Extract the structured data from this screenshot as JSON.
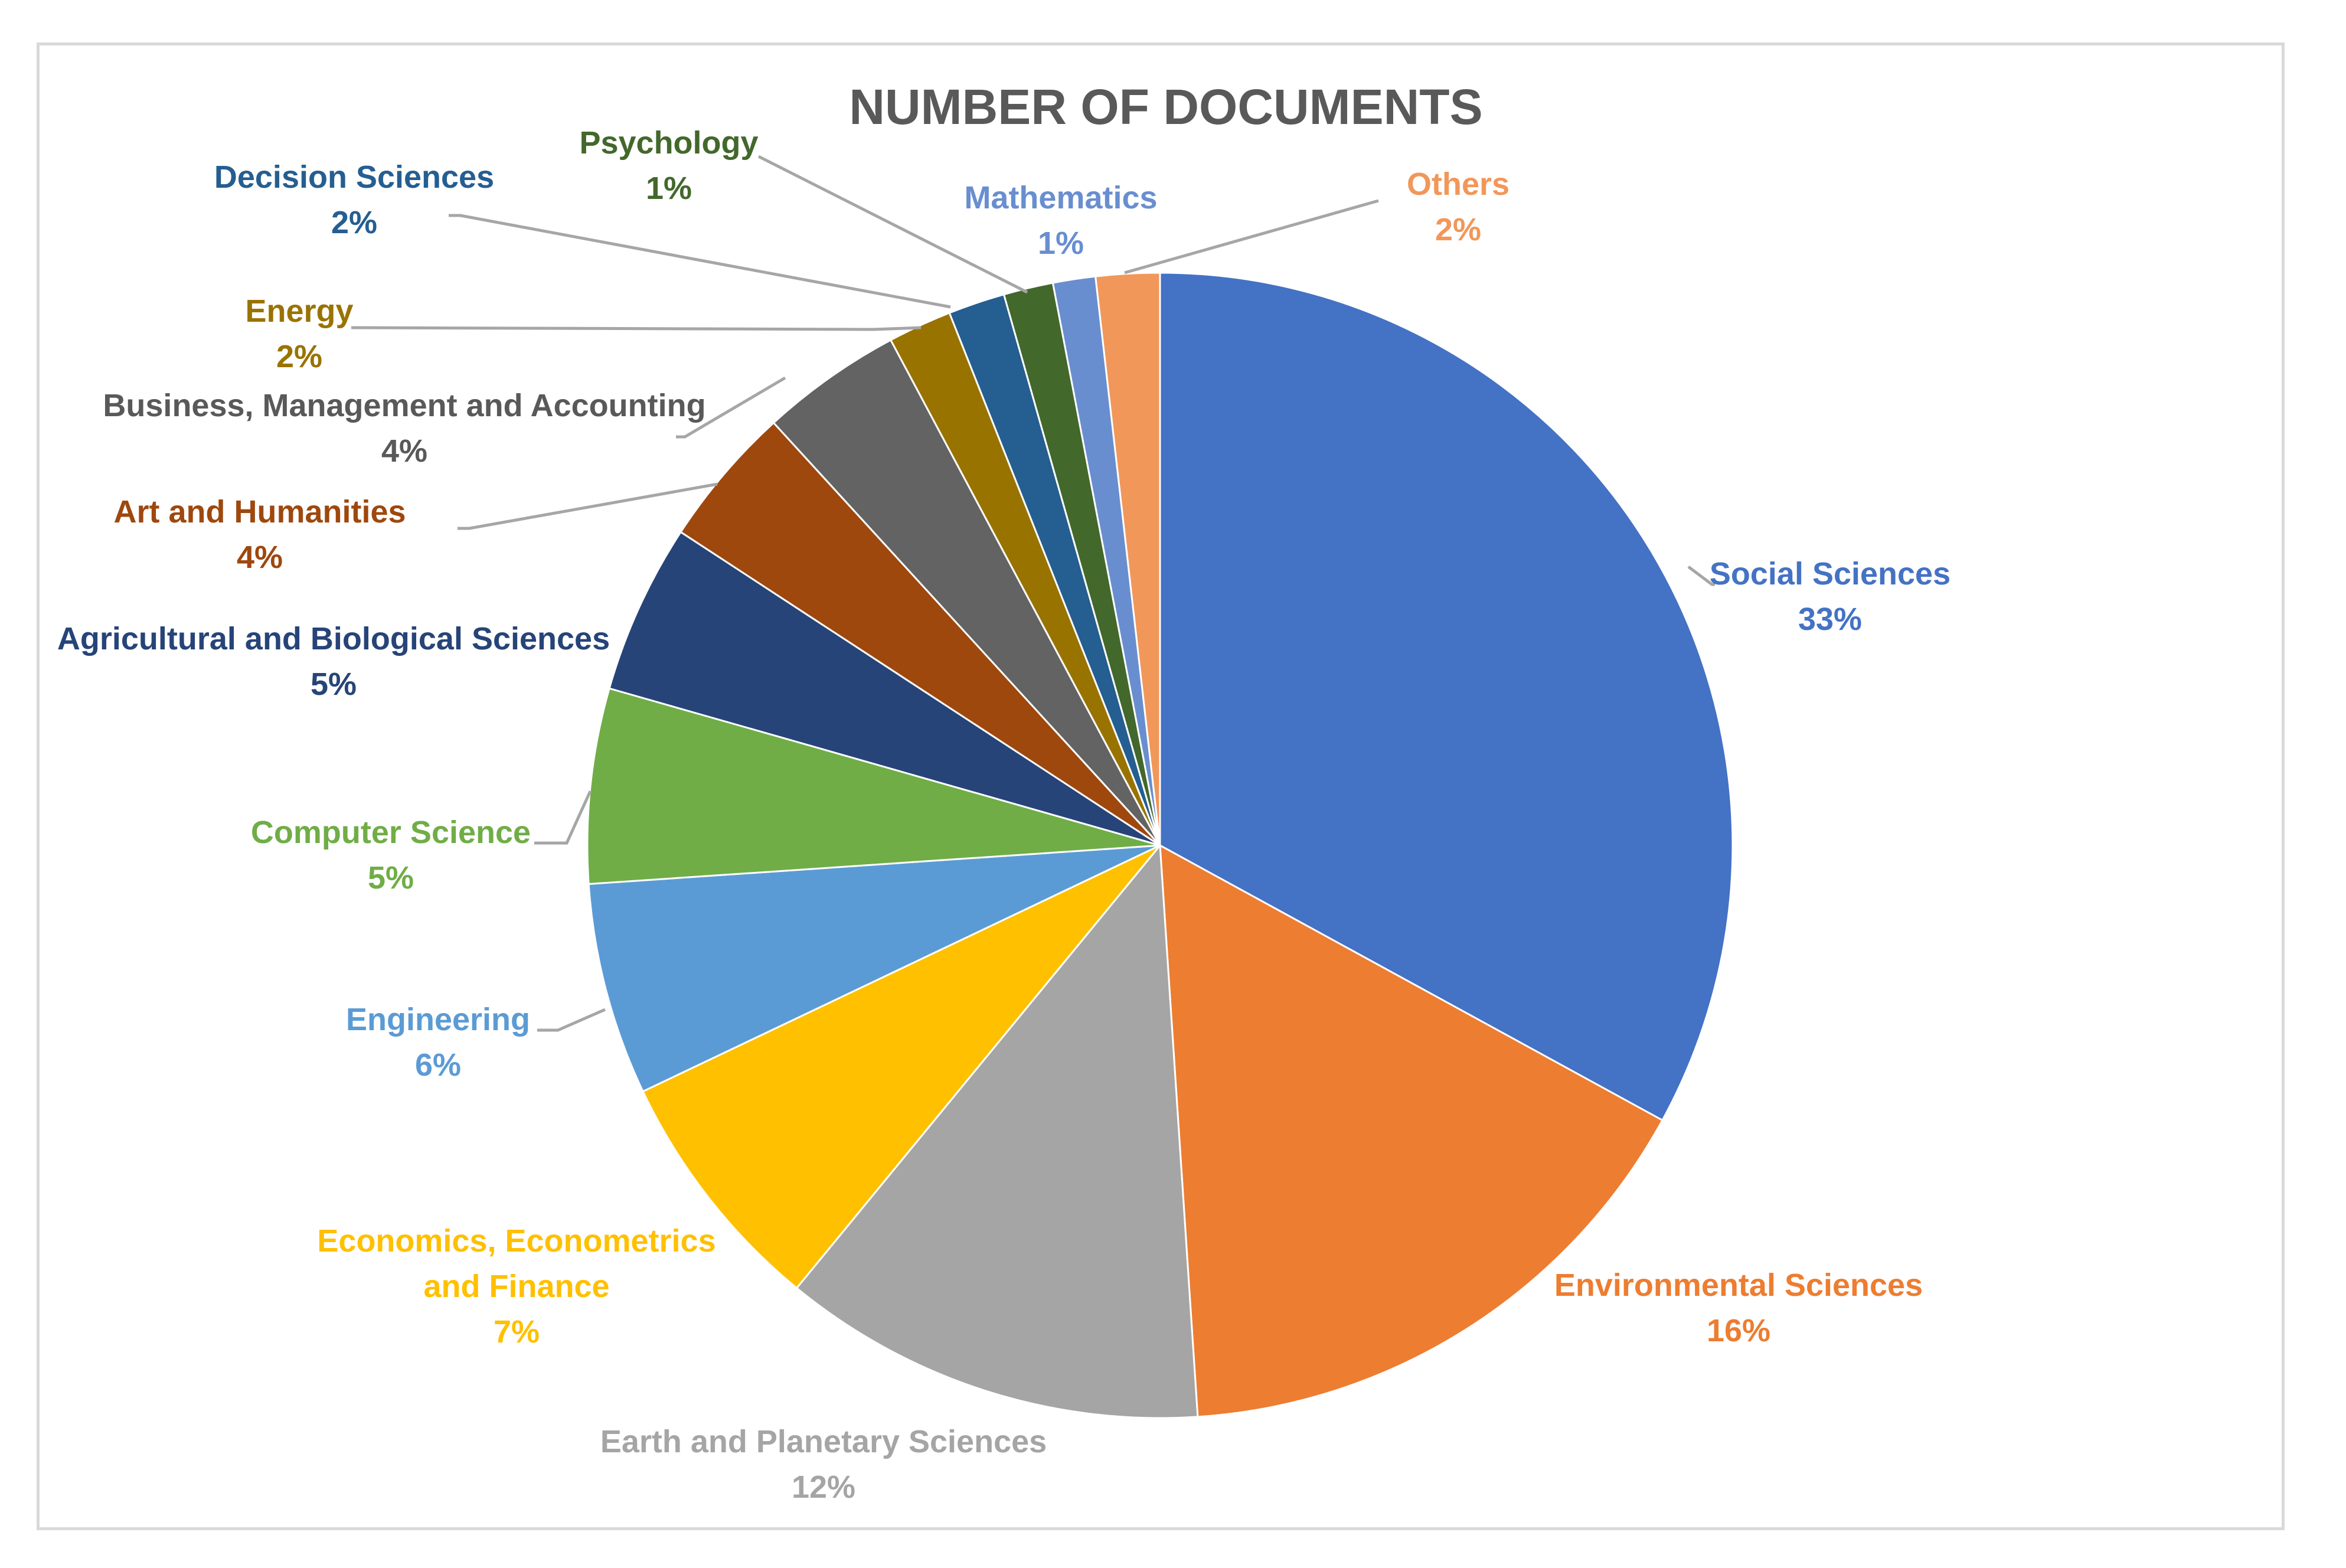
{
  "chart_data": {
    "type": "pie",
    "title": "NUMBER OF DOCUMENTS",
    "series": [
      {
        "name": "Social Sciences",
        "value": 33,
        "pct_label": "33%",
        "color": "#4472C4"
      },
      {
        "name": "Environmental Sciences",
        "value": 16,
        "pct_label": "16%",
        "color": "#ED7D31"
      },
      {
        "name": "Earth and Planetary Sciences",
        "value": 12,
        "pct_label": "12%",
        "color": "#A5A5A5"
      },
      {
        "name": "Economics, Econometrics and Finance",
        "value": 7,
        "pct_label": "7%",
        "color": "#FFC000"
      },
      {
        "name": "Engineering",
        "value": 6,
        "pct_label": "6%",
        "color": "#5B9BD5"
      },
      {
        "name": "Computer Science",
        "value": 5.5,
        "pct_label": "5%",
        "color": "#70AD47"
      },
      {
        "name": "Agricultural and Biological Sciences",
        "value": 4.8,
        "pct_label": "5%",
        "color": "#264478"
      },
      {
        "name": "Art and Humanities",
        "value": 4,
        "pct_label": "4%",
        "color": "#9E480E"
      },
      {
        "name": "Business, Management and Accounting",
        "value": 4,
        "pct_label": "4%",
        "color": "#636363"
      },
      {
        "name": "Energy",
        "value": 1.8,
        "pct_label": "2%",
        "color": "#997300"
      },
      {
        "name": "Decision Sciences",
        "value": 1.6,
        "pct_label": "2%",
        "color": "#255E91"
      },
      {
        "name": "Psychology",
        "value": 1.4,
        "pct_label": "1%",
        "color": "#43682B"
      },
      {
        "name": "Mathematics",
        "value": 1.2,
        "pct_label": "1%",
        "color": "#698ED0"
      },
      {
        "name": "Others",
        "value": 1.8,
        "pct_label": "2%",
        "color": "#F1975A"
      }
    ],
    "label_text_colors": {
      "Earth and Planetary Sciences": "#A5A5A5",
      "Business, Management and Accounting": "#595959"
    },
    "legend": "none",
    "leader_line_color": "#A6A6A6"
  }
}
